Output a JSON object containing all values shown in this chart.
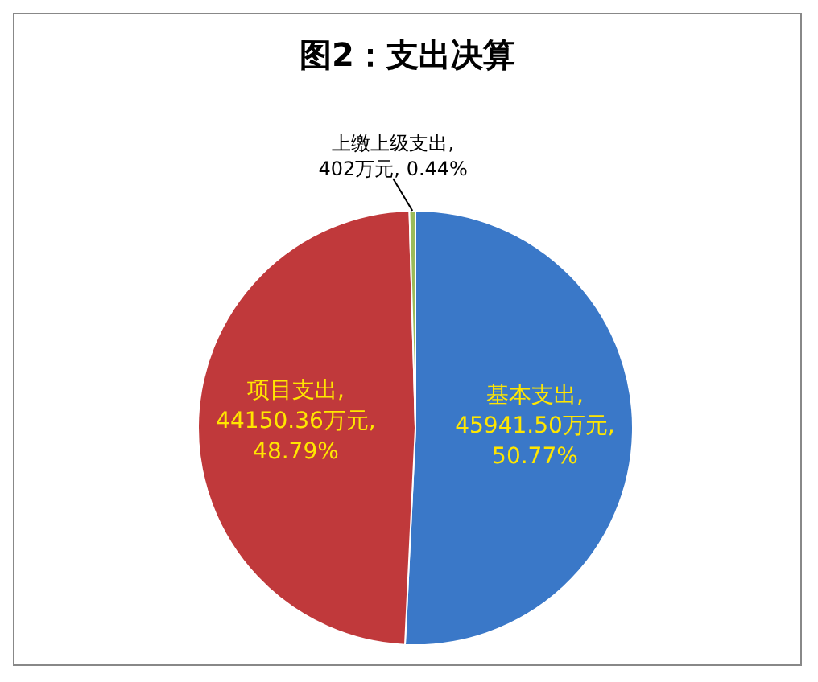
{
  "chart_data": {
    "type": "pie",
    "title": "图2：支出决算",
    "categories": [
      "基本支出",
      "项目支出",
      "上缴上级支出"
    ],
    "values": [
      45941.5,
      44150.36,
      402
    ],
    "colors": [
      "#3a78c8",
      "#c0393b",
      "#9bbb59"
    ],
    "value_labels": [
      ", 45941.50万元, 50.77%",
      ", 44150.36万元, 48.79%",
      ", 402万元, 0.44%"
    ]
  }
}
